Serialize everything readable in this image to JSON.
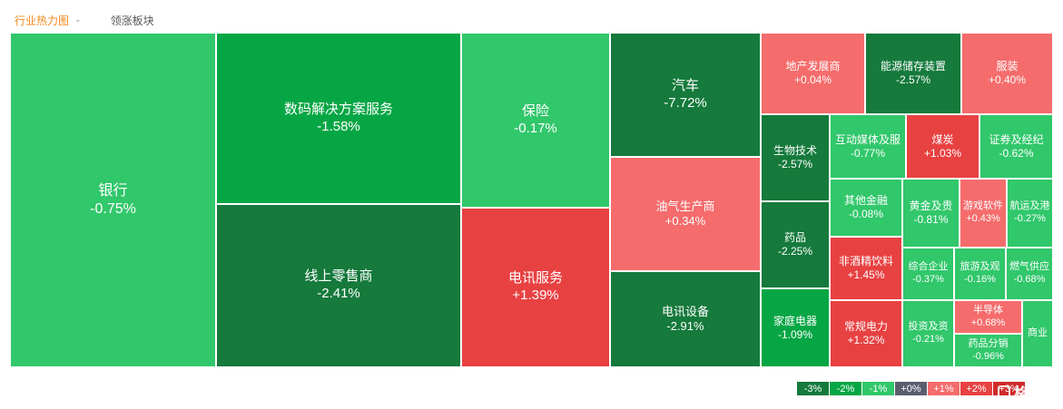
{
  "tabs": {
    "active": "行业热力图",
    "inactive": "领涨板块"
  },
  "colors": {
    "g1": "#31c76b",
    "g2": "#07a645",
    "g3": "#157a3c",
    "r1": "#f56c6c",
    "r2": "#e84142",
    "r3": "#d02a2a",
    "neutral": "#5a5d6e"
  },
  "tiles": [
    {
      "name": "银行",
      "change": "-0.75%",
      "tone": "g1",
      "size": "xl"
    },
    {
      "name": "数码解决方案服务",
      "change": "-1.58%",
      "tone": "g2",
      "size": "l"
    },
    {
      "name": "线上零售商",
      "change": "-2.41%",
      "tone": "g3",
      "size": "l"
    },
    {
      "name": "保险",
      "change": "-0.17%",
      "tone": "g1",
      "size": "l"
    },
    {
      "name": "电讯服务",
      "change": "+1.39%",
      "tone": "r2",
      "size": "l"
    },
    {
      "name": "汽车",
      "change": "-7.72%",
      "tone": "g3",
      "size": "l"
    },
    {
      "name": "油气生产商",
      "change": "+0.34%",
      "tone": "r1",
      "size": "m"
    },
    {
      "name": "电讯设备",
      "change": "-2.91%",
      "tone": "g3",
      "size": "m"
    },
    {
      "name": "地产发展商",
      "change": "+0.04%",
      "tone": "r1",
      "size": "s"
    },
    {
      "name": "能源储存装置",
      "change": "-2.57%",
      "tone": "g3",
      "size": "s"
    },
    {
      "name": "服装",
      "change": "+0.40%",
      "tone": "r1",
      "size": "s"
    },
    {
      "name": "生物技术",
      "change": "-2.57%",
      "tone": "g3",
      "size": "s"
    },
    {
      "name": "互动媒体及服",
      "change": "-0.77%",
      "tone": "g1",
      "size": "s"
    },
    {
      "name": "煤炭",
      "change": "+1.03%",
      "tone": "r2",
      "size": "s"
    },
    {
      "name": "证券及经纪",
      "change": "-0.62%",
      "tone": "g1",
      "size": "s"
    },
    {
      "name": "药品",
      "change": "-2.25%",
      "tone": "g3",
      "size": "s"
    },
    {
      "name": "其他金融",
      "change": "-0.08%",
      "tone": "g1",
      "size": "s"
    },
    {
      "name": "黄金及贵",
      "change": "-0.81%",
      "tone": "g1",
      "size": "s"
    },
    {
      "name": "游戏软件",
      "change": "+0.43%",
      "tone": "r1",
      "size": "xs"
    },
    {
      "name": "航运及港",
      "change": "-0.27%",
      "tone": "g1",
      "size": "xs"
    },
    {
      "name": "非酒精饮料",
      "change": "+1.45%",
      "tone": "r2",
      "size": "s"
    },
    {
      "name": "综合企业",
      "change": "-0.37%",
      "tone": "g1",
      "size": "xs"
    },
    {
      "name": "旅游及观",
      "change": "-0.16%",
      "tone": "g1",
      "size": "xs"
    },
    {
      "name": "燃气供应",
      "change": "-0.68%",
      "tone": "g1",
      "size": "xs"
    },
    {
      "name": "家庭电器",
      "change": "-1.09%",
      "tone": "g2",
      "size": "s"
    },
    {
      "name": "常规电力",
      "change": "+1.32%",
      "tone": "r2",
      "size": "s"
    },
    {
      "name": "投资及资",
      "change": "-0.21%",
      "tone": "g1",
      "size": "xs"
    },
    {
      "name": "半导体",
      "change": "+0.68%",
      "tone": "r1",
      "size": "xs"
    },
    {
      "name": "药品分销",
      "change": "-0.96%",
      "tone": "g1",
      "size": "xs"
    },
    {
      "name": "商业",
      "change": "",
      "tone": "g1",
      "size": "xs"
    }
  ],
  "legend": [
    {
      "label": "-3%",
      "color": "#157a3c"
    },
    {
      "label": "-2%",
      "color": "#07a645"
    },
    {
      "label": "-1%",
      "color": "#31c76b"
    },
    {
      "label": "+0%",
      "color": "#5a5d6e"
    },
    {
      "label": "+1%",
      "color": "#f56c6c"
    },
    {
      "label": "+2%",
      "color": "#e84142"
    },
    {
      "label": "+3%",
      "color": "#d02a2a"
    }
  ],
  "watermark": "格隆汇"
}
